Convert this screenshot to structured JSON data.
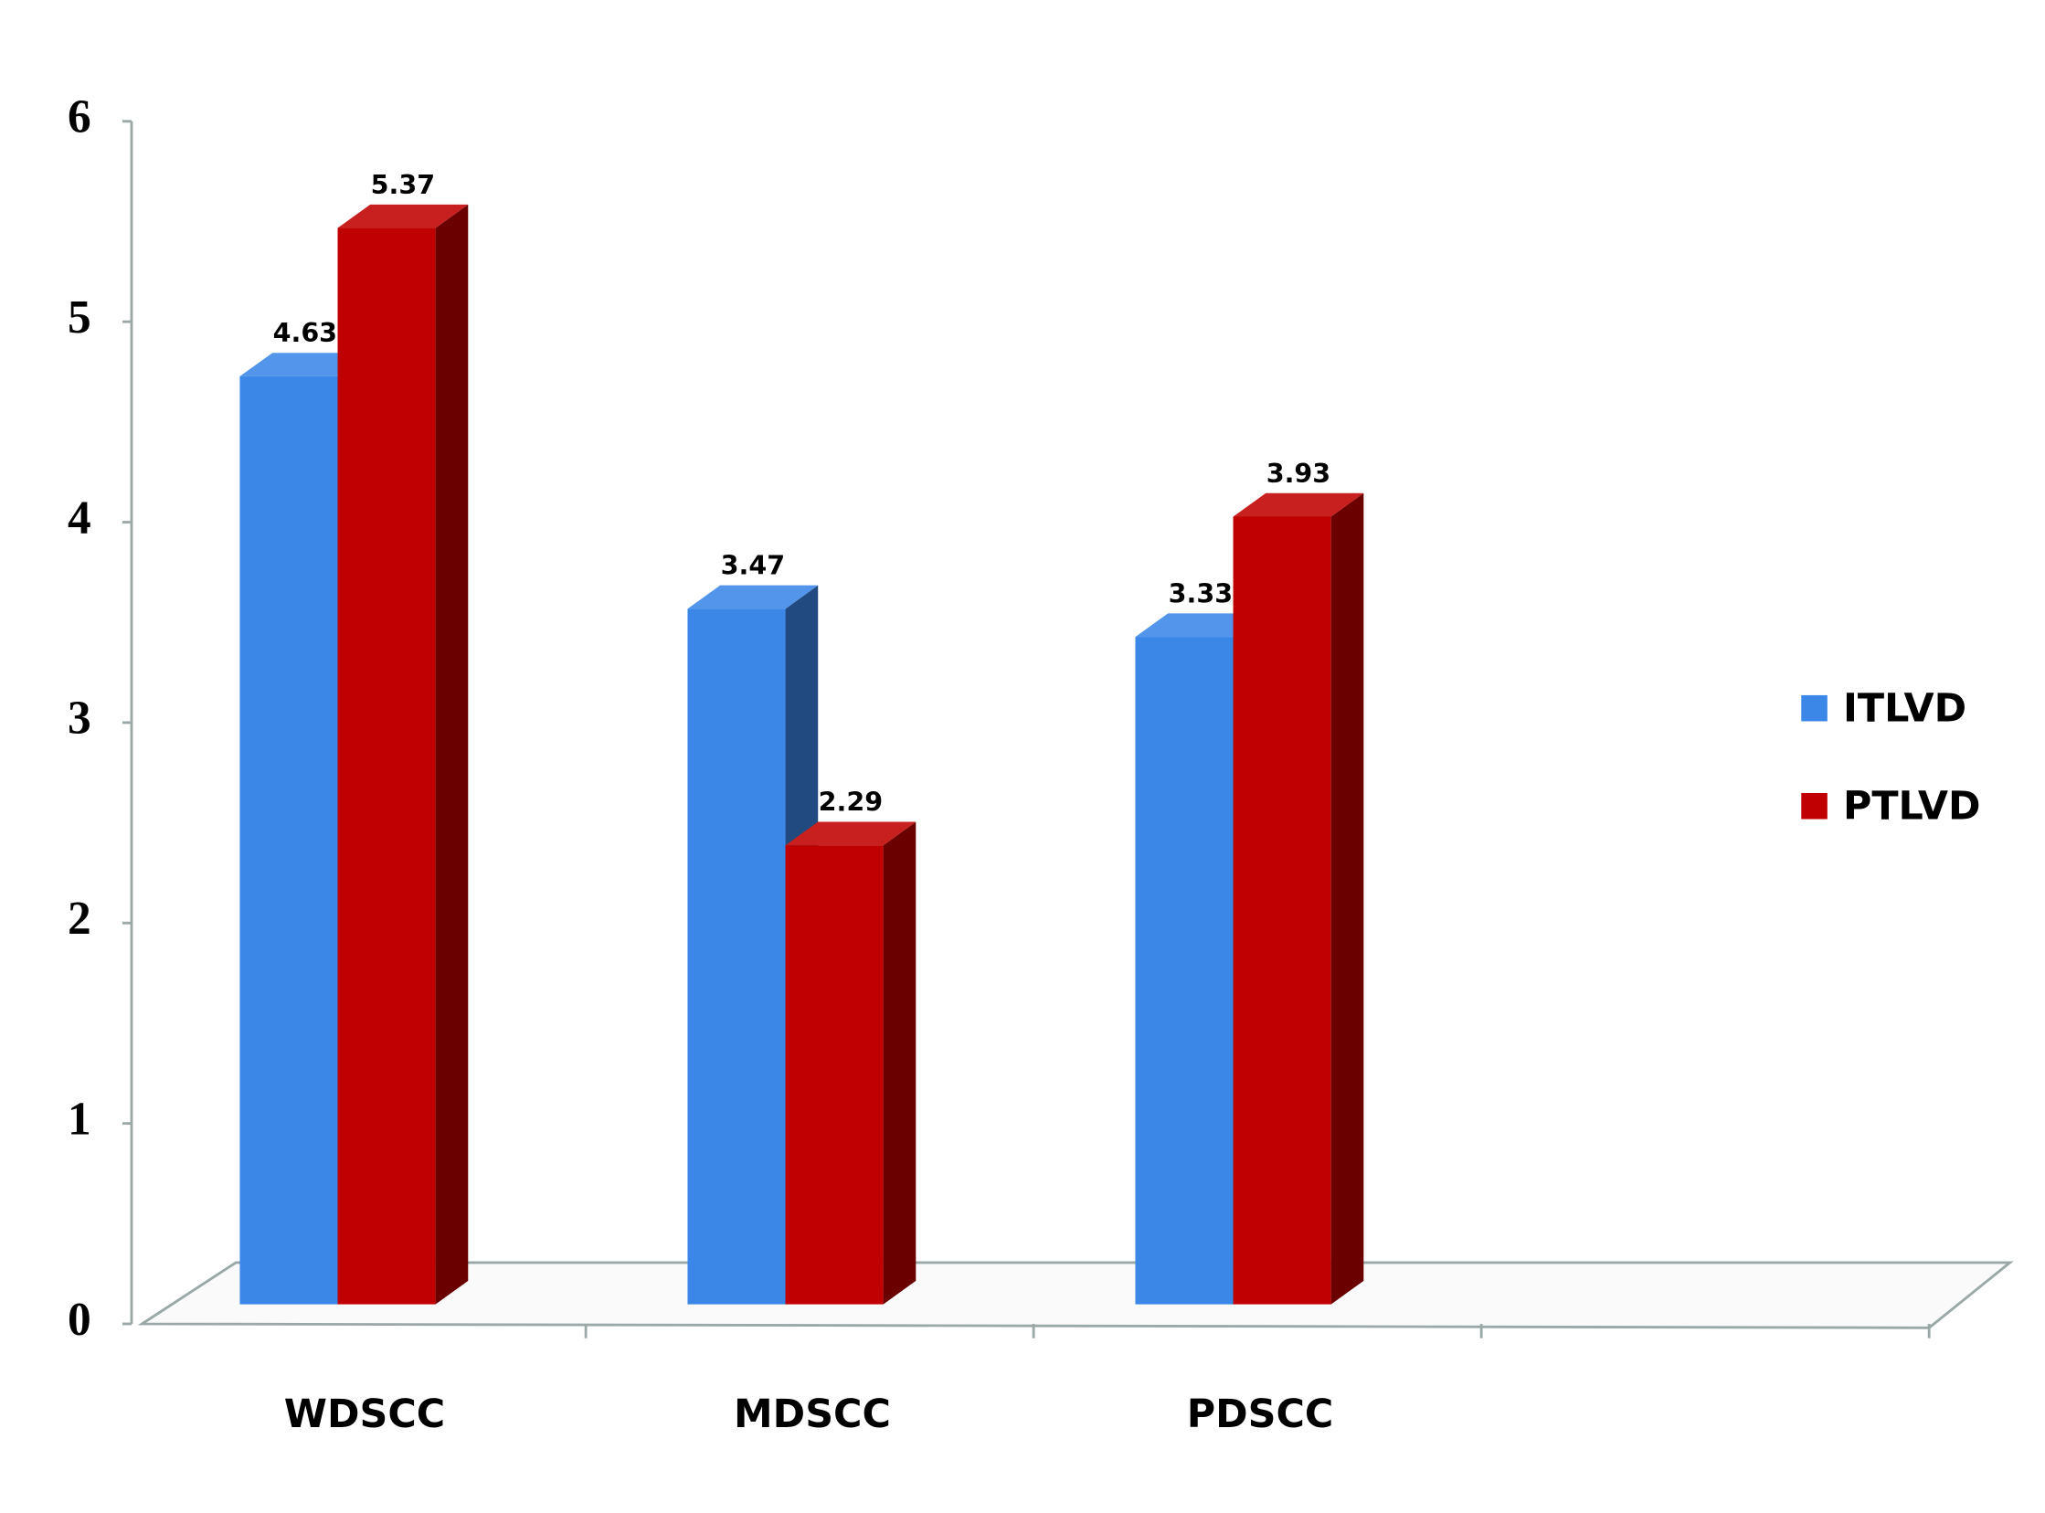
{
  "chart_data": {
    "type": "bar3d",
    "categories": [
      "WDSCC",
      "MDSCC",
      "PDSCC",
      null
    ],
    "series": [
      {
        "name": "ITLVD",
        "color": "#3a87e8",
        "values": [
          4.63,
          3.47,
          3.33,
          null
        ]
      },
      {
        "name": "PTLVD",
        "color": "#c00000",
        "values": [
          5.37,
          2.29,
          3.93,
          null
        ]
      }
    ],
    "ylim": [
      0,
      6
    ],
    "yticks": [
      0,
      1,
      2,
      3,
      4,
      5,
      6
    ],
    "grid": false,
    "legend": "right"
  }
}
